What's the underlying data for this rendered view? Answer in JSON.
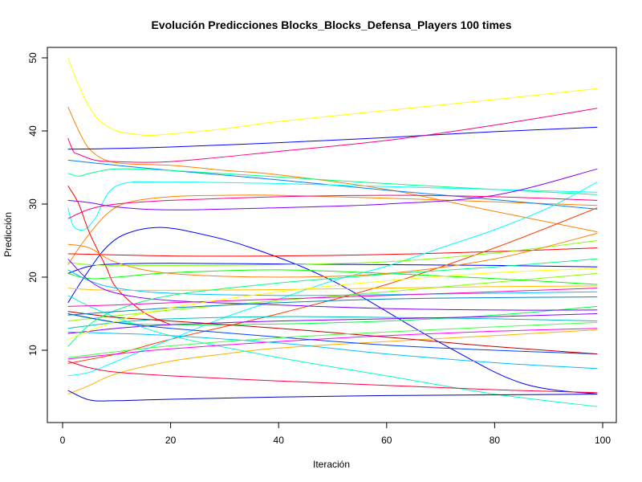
{
  "chart_data": {
    "type": "line",
    "title": "Evolución Predicciones Blocks_Blocks_Defensa_Players 100 times",
    "xlabel": "Iteración",
    "ylabel": "Predicción",
    "xlim": [
      1,
      99
    ],
    "ylim": [
      2,
      50
    ],
    "xticks": [
      0,
      20,
      40,
      60,
      80,
      100
    ],
    "yticks": [
      10,
      20,
      30,
      40,
      50
    ],
    "grid": false,
    "legend": "none",
    "series": [
      {
        "color": "#FFFF00",
        "x": [
          1,
          3,
          5,
          7,
          10,
          13,
          16,
          20,
          30,
          40,
          60,
          80,
          99
        ],
        "y": [
          50,
          46.2,
          43.2,
          41.3,
          40,
          39.6,
          39.4,
          39.6,
          40.3,
          41.3,
          42.8,
          44.3,
          45.8
        ]
      },
      {
        "color": "#FF8000",
        "x": [
          1,
          3,
          5,
          8,
          12,
          20,
          30,
          40,
          60,
          80,
          99
        ],
        "y": [
          43.3,
          40,
          37.5,
          36,
          35.5,
          35.3,
          34.6,
          34,
          32,
          29,
          26.2
        ]
      },
      {
        "color": "#FF8000",
        "x": [
          1,
          4,
          8,
          12,
          20,
          30,
          40,
          60,
          80,
          99
        ],
        "y": [
          21.7,
          25,
          28.5,
          30.2,
          31,
          31.2,
          31.2,
          30.8,
          30.3,
          29.8
        ]
      },
      {
        "color": "#0000FF",
        "x": [
          1,
          10,
          20,
          40,
          60,
          80,
          99
        ],
        "y": [
          37.5,
          37.6,
          37.8,
          38.4,
          39.1,
          39.9,
          40.5
        ]
      },
      {
        "color": "#FF0080",
        "x": [
          1,
          2,
          3,
          6,
          10,
          20,
          40,
          60,
          80,
          99
        ],
        "y": [
          39,
          37.2,
          36.8,
          36,
          35.8,
          35.8,
          37.2,
          38.7,
          40.8,
          43.1
        ]
      },
      {
        "color": "#0080FF",
        "x": [
          1,
          10,
          20,
          40,
          60,
          80,
          99
        ],
        "y": [
          36,
          35.3,
          34.6,
          33.3,
          31.9,
          30.6,
          29.3
        ]
      },
      {
        "color": "#00FF80",
        "x": [
          1,
          3,
          5,
          10,
          20,
          40,
          60,
          80,
          99
        ],
        "y": [
          34.2,
          33.8,
          34.2,
          34.8,
          34.6,
          33.7,
          32.8,
          32,
          31.3
        ]
      },
      {
        "color": "#00FFFF",
        "x": [
          1,
          2,
          4,
          6,
          10,
          20,
          40,
          60,
          80,
          99
        ],
        "y": [
          29.5,
          27,
          26.5,
          28,
          32.5,
          33,
          32.8,
          32.4,
          32,
          31.6
        ]
      },
      {
        "color": "#8000FF",
        "x": [
          1,
          5,
          10,
          20,
          40,
          60,
          80,
          99
        ],
        "y": [
          30.5,
          30.2,
          29.6,
          29.2,
          29.5,
          30,
          31.2,
          34.8
        ]
      },
      {
        "color": "#FF0000",
        "x": [
          1,
          3,
          5,
          8,
          10,
          15,
          20
        ],
        "y": [
          32.5,
          30,
          26,
          21.5,
          18.5,
          15.2,
          13.5
        ]
      },
      {
        "color": "#0000FF",
        "x": [
          1,
          5,
          10,
          20,
          40,
          60,
          80,
          99
        ],
        "y": [
          20.5,
          21.5,
          21.8,
          21.9,
          21.8,
          21.7,
          21.6,
          21.4
        ]
      },
      {
        "color": "#0000FF",
        "x": [
          1,
          4,
          8,
          12,
          18,
          25,
          35,
          50,
          70,
          85,
          99
        ],
        "y": [
          16.5,
          20,
          24,
          26,
          26.8,
          26,
          24,
          19.5,
          11,
          5.5,
          4
        ]
      },
      {
        "color": "#FF0000",
        "x": [
          1,
          20,
          40,
          60,
          80,
          99
        ],
        "y": [
          23.2,
          22.9,
          22.9,
          23.1,
          23.5,
          24
        ]
      },
      {
        "color": "#FF4000",
        "x": [
          1,
          10,
          20,
          40,
          60,
          80,
          99
        ],
        "y": [
          8.2,
          9.5,
          11.5,
          15,
          19,
          24,
          29.5
        ]
      },
      {
        "color": "#FFB000",
        "x": [
          1,
          5,
          10,
          20,
          30,
          40,
          60,
          80,
          99
        ],
        "y": [
          4,
          5.2,
          6.8,
          8.5,
          9.5,
          10.3,
          11.2,
          12,
          12.8
        ]
      },
      {
        "color": "#00FFFF",
        "x": [
          1,
          5,
          10,
          20,
          30,
          40,
          50,
          60,
          70,
          80,
          90,
          99
        ],
        "y": [
          6.5,
          7,
          8.5,
          11.5,
          14.5,
          17,
          19.5,
          21.5,
          24,
          26.5,
          29.5,
          33
        ]
      },
      {
        "color": "#80FF00",
        "x": [
          1,
          20,
          40,
          60,
          80,
          99
        ],
        "y": [
          14,
          15.5,
          16.8,
          18,
          19.3,
          20.5
        ]
      },
      {
        "color": "#00FF40",
        "x": [
          1,
          10,
          20,
          40,
          60,
          80,
          99
        ],
        "y": [
          15,
          13.8,
          13.5,
          13.6,
          14,
          14.8,
          16
        ]
      },
      {
        "color": "#00C0C0",
        "x": [
          1,
          10,
          20,
          40,
          60,
          80,
          99
        ],
        "y": [
          13,
          13.8,
          14.3,
          14.6,
          14.5,
          14.3,
          14
        ]
      },
      {
        "color": "#8000FF",
        "x": [
          1,
          5,
          10,
          20,
          40,
          60,
          80,
          99
        ],
        "y": [
          12.3,
          12.6,
          13,
          13.5,
          14,
          14.3,
          14.6,
          15
        ]
      },
      {
        "color": "#00FFC0",
        "x": [
          1,
          5,
          10,
          20,
          40,
          60,
          80,
          99
        ],
        "y": [
          17.5,
          16,
          14.5,
          12,
          9,
          6.5,
          4,
          2.3
        ]
      },
      {
        "color": "#0000C0",
        "x": [
          1,
          5,
          10,
          20,
          40,
          60,
          80,
          99
        ],
        "y": [
          4.5,
          3.2,
          3.1,
          3.3,
          3.6,
          3.8,
          3.9,
          4
        ]
      },
      {
        "color": "#FF0040",
        "x": [
          1,
          5,
          10,
          20,
          40,
          60,
          80,
          99
        ],
        "y": [
          8.5,
          7.6,
          7,
          6.5,
          5.8,
          5.2,
          4.6,
          4.2
        ]
      },
      {
        "color": "#FF00FF",
        "x": [
          1,
          10,
          20,
          40,
          60,
          80,
          99
        ],
        "y": [
          8.8,
          9.5,
          10.2,
          11.2,
          12,
          12.6,
          13
        ]
      },
      {
        "color": "#00C0FF",
        "x": [
          1,
          10,
          20,
          40,
          60,
          80,
          99
        ],
        "y": [
          12.5,
          12.3,
          12,
          11,
          9.5,
          8.3,
          7.5
        ]
      },
      {
        "color": "#0040FF",
        "x": [
          1,
          10,
          20,
          40,
          60,
          80,
          99
        ],
        "y": [
          15,
          13.8,
          13,
          11.8,
          10.7,
          10,
          9.5
        ]
      },
      {
        "color": "#C00000",
        "x": [
          1,
          10,
          20,
          40,
          60,
          80,
          99
        ],
        "y": [
          15.3,
          14.5,
          14,
          13,
          11.8,
          10.5,
          9.5
        ]
      },
      {
        "color": "#00FF00",
        "x": [
          1,
          5,
          10,
          20,
          40,
          60,
          80,
          99
        ],
        "y": [
          20.5,
          19.8,
          20,
          20.6,
          21,
          20.5,
          19.8,
          19
        ]
      },
      {
        "color": "#00C0FF",
        "x": [
          1,
          5,
          10,
          20,
          40,
          60,
          80,
          99
        ],
        "y": [
          21,
          19.5,
          18.5,
          17.8,
          17.5,
          17.6,
          17.8,
          18
        ]
      },
      {
        "color": "#80FF00",
        "x": [
          1,
          5,
          10,
          20,
          40,
          60,
          80,
          99
        ],
        "y": [
          22,
          21.7,
          21.6,
          21.6,
          21.7,
          22.1,
          23.3,
          25
        ]
      },
      {
        "color": "#FFC000",
        "x": [
          1,
          5,
          10,
          20,
          40,
          60,
          80,
          99
        ],
        "y": [
          18.5,
          18.3,
          18.2,
          18.2,
          18.3,
          18.5,
          18.7,
          18.8
        ]
      },
      {
        "color": "#FF8000",
        "x": [
          1,
          5,
          10,
          20,
          40,
          60,
          80,
          99
        ],
        "y": [
          24.5,
          24,
          22,
          20.5,
          20,
          20.5,
          22.5,
          26
        ]
      },
      {
        "color": "#8000FF",
        "x": [
          1,
          5,
          10,
          20,
          40,
          60,
          80,
          99
        ],
        "y": [
          22.5,
          19.5,
          17.8,
          16.8,
          16.2,
          15.7,
          15.5,
          15.5
        ]
      },
      {
        "color": "#00FF80",
        "x": [
          1,
          5,
          10,
          20,
          40,
          60,
          80,
          99
        ],
        "y": [
          10.5,
          13.5,
          15.5,
          17.5,
          19.2,
          20.4,
          21.4,
          22.5
        ]
      },
      {
        "color": "#FF0080",
        "x": [
          1,
          5,
          10,
          20,
          40,
          60,
          80,
          99
        ],
        "y": [
          28,
          29.3,
          30,
          30.5,
          31,
          31.2,
          31,
          30.5
        ]
      },
      {
        "color": "#0080C0",
        "x": [
          1,
          10,
          20,
          40,
          60,
          80,
          99
        ],
        "y": [
          14.8,
          15.3,
          15.8,
          16.5,
          17,
          17.2,
          17.3
        ]
      },
      {
        "color": "#FF00C0",
        "x": [
          1,
          10,
          20,
          40,
          60,
          80,
          99
        ],
        "y": [
          16,
          16.2,
          16.5,
          17,
          17.5,
          18,
          18.5
        ]
      },
      {
        "color": "#40FF40",
        "x": [
          1,
          10,
          20,
          40,
          60,
          80,
          99
        ],
        "y": [
          9,
          9.8,
          10.6,
          11.7,
          12.5,
          13.2,
          13.8
        ]
      },
      {
        "color": "#FFFF00",
        "x": [
          1,
          10,
          20,
          40,
          60,
          80,
          99
        ],
        "y": [
          11.5,
          14,
          15.8,
          18,
          19.5,
          20.6,
          21.2
        ]
      }
    ]
  }
}
